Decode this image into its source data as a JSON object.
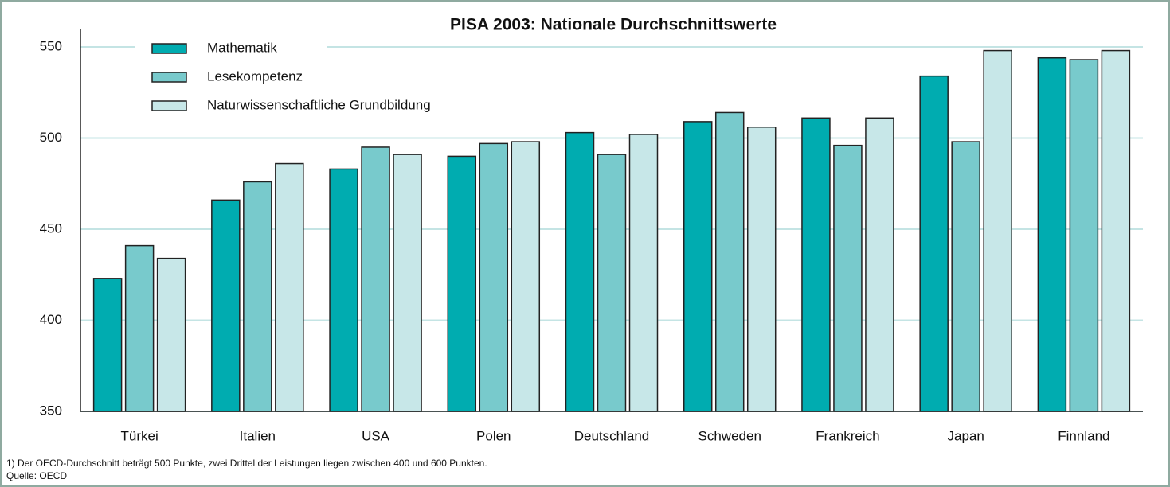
{
  "chart_data": {
    "type": "bar",
    "title": "PISA 2003: Nationale Durchschnittswerte",
    "categories": [
      "Türkei",
      "Italien",
      "USA",
      "Polen",
      "Deutschland",
      "Schweden",
      "Frankreich",
      "Japan",
      "Finnland"
    ],
    "series": [
      {
        "name": "Mathematik",
        "color": "#00acb0",
        "values": [
          423,
          466,
          483,
          490,
          503,
          509,
          511,
          534,
          544
        ]
      },
      {
        "name": "Lesekompetenz",
        "color": "#78cacc",
        "values": [
          441,
          476,
          495,
          497,
          491,
          514,
          496,
          498,
          543
        ]
      },
      {
        "name": "Naturwissenschaftliche Grundbildung",
        "color": "#c7e7e8",
        "values": [
          434,
          486,
          491,
          498,
          502,
          506,
          511,
          548,
          548
        ]
      }
    ],
    "ylim": [
      350,
      550
    ],
    "yticks": [
      350,
      400,
      450,
      500,
      550
    ],
    "grid": true,
    "legend": "top-left",
    "notes": [
      "1) Der OECD-Durchschnitt beträgt 500 Punkte, zwei Drittel der Leistungen liegen zwischen 400 und 600 Punkten.",
      "Quelle: OECD"
    ]
  }
}
